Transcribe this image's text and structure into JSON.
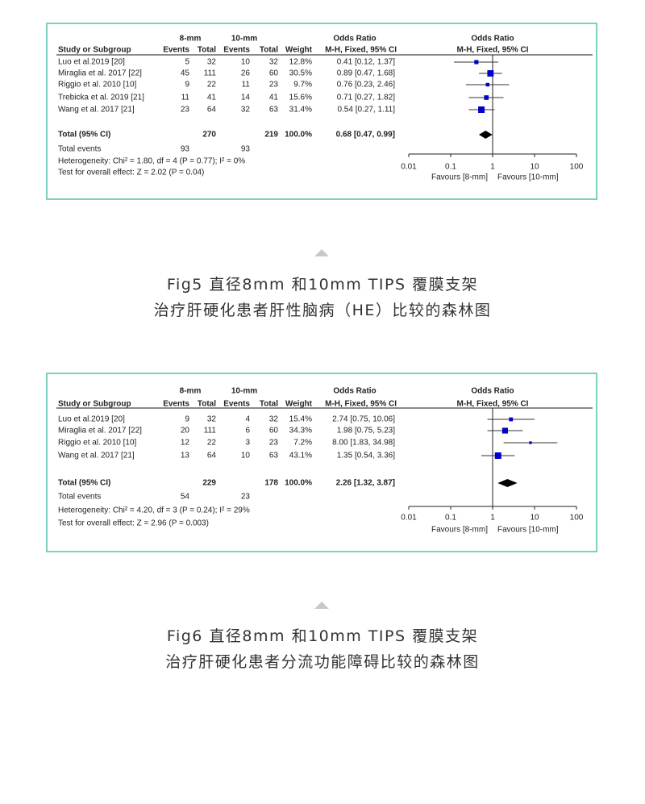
{
  "figures": [
    {
      "caption_line1": "Fig5 直径8mm 和10mm TIPS 覆膜支架",
      "caption_line2": "治疗肝硬化患者肝性脑病（HE）比较的森林图",
      "chart_data": {
        "type": "forest",
        "headers": {
          "group1": "8-mm",
          "group2": "10-mm",
          "or_col": "Odds Ratio",
          "study": "Study or Subgroup",
          "events": "Events",
          "total": "Total",
          "weight": "Weight",
          "method": "M-H, Fixed, 95% CI",
          "plot_title": "Odds Ratio",
          "plot_method": "M-H, Fixed, 95% CI"
        },
        "studies": [
          {
            "name": "Luo et al.2019 [20]",
            "e1": "5",
            "t1": "32",
            "e2": "10",
            "t2": "32",
            "weight": "12.8%",
            "or_text": "0.41 [0.12, 1.37]",
            "or": 0.41,
            "lo": 0.12,
            "hi": 1.37,
            "w": 12.8
          },
          {
            "name": "Miraglia et al. 2017 [22]",
            "e1": "45",
            "t1": "111",
            "e2": "26",
            "t2": "60",
            "weight": "30.5%",
            "or_text": "0.89 [0.47, 1.68]",
            "or": 0.89,
            "lo": 0.47,
            "hi": 1.68,
            "w": 30.5
          },
          {
            "name": "Riggio et al. 2010 [10]",
            "e1": "9",
            "t1": "22",
            "e2": "11",
            "t2": "23",
            "weight": "9.7%",
            "or_text": "0.76 [0.23, 2.46]",
            "or": 0.76,
            "lo": 0.23,
            "hi": 2.46,
            "w": 9.7
          },
          {
            "name": "Trebicka et al. 2019 [21]",
            "e1": "11",
            "t1": "41",
            "e2": "14",
            "t2": "41",
            "weight": "15.6%",
            "or_text": "0.71 [0.27, 1.82]",
            "or": 0.71,
            "lo": 0.27,
            "hi": 1.82,
            "w": 15.6
          },
          {
            "name": "Wang et al. 2017 [21]",
            "e1": "23",
            "t1": "64",
            "e2": "32",
            "t2": "63",
            "weight": "31.4%",
            "or_text": "0.54 [0.27, 1.11]",
            "or": 0.54,
            "lo": 0.27,
            "hi": 1.11,
            "w": 31.4
          }
        ],
        "total": {
          "name": "Total (95% CI)",
          "t1": "270",
          "t2": "219",
          "weight": "100.0%",
          "or_text": "0.68 [0.47, 0.99]",
          "or": 0.68,
          "lo": 0.47,
          "hi": 0.99
        },
        "total_events": {
          "label": "Total events",
          "e1": "93",
          "e2": "93"
        },
        "heterogeneity": "Heterogeneity: Chi² = 1.80, df = 4 (P = 0.77); I² = 0%",
        "overall": "Test for overall effect: Z = 2.02 (P = 0.04)",
        "axis_ticks": [
          "0.01",
          "0.1",
          "1",
          "10",
          "100"
        ],
        "favours_left": "Favours [8-mm]",
        "favours_right": "Favours [10-mm]",
        "scale": "log",
        "xlim": [
          0.01,
          100
        ],
        "marker_color": "#0000cc"
      }
    },
    {
      "caption_line1": "Fig6 直径8mm 和10mm TIPS 覆膜支架",
      "caption_line2": "治疗肝硬化患者分流功能障碍比较的森林图",
      "chart_data": {
        "type": "forest",
        "headers": {
          "group1": "8-mm",
          "group2": "10-mm",
          "or_col": "Odds Ratio",
          "study": "Study or Subgroup",
          "events": "Events",
          "total": "Total",
          "weight": "Weight",
          "method": "M-H, Fixed, 95% CI",
          "plot_title": "Odds Ratio",
          "plot_method": "M-H, Fixed, 95% CI"
        },
        "studies": [
          {
            "name": "Luo et al.2019 [20]",
            "e1": "9",
            "t1": "32",
            "e2": "4",
            "t2": "32",
            "weight": "15.4%",
            "or_text": "2.74 [0.75, 10.06]",
            "or": 2.74,
            "lo": 0.75,
            "hi": 10.06,
            "w": 15.4
          },
          {
            "name": "Miraglia et al. 2017 [22]",
            "e1": "20",
            "t1": "111",
            "e2": "6",
            "t2": "60",
            "weight": "34.3%",
            "or_text": "1.98 [0.75, 5.23]",
            "or": 1.98,
            "lo": 0.75,
            "hi": 5.23,
            "w": 34.3
          },
          {
            "name": "Riggio et al. 2010 [10]",
            "e1": "12",
            "t1": "22",
            "e2": "3",
            "t2": "23",
            "weight": "7.2%",
            "or_text": "8.00 [1.83, 34.98]",
            "or": 8.0,
            "lo": 1.83,
            "hi": 34.98,
            "w": 7.2
          },
          {
            "name": "Wang et al. 2017 [21]",
            "e1": "13",
            "t1": "64",
            "e2": "10",
            "t2": "63",
            "weight": "43.1%",
            "or_text": "1.35 [0.54, 3.36]",
            "or": 1.35,
            "lo": 0.54,
            "hi": 3.36,
            "w": 43.1
          }
        ],
        "total": {
          "name": "Total (95% CI)",
          "t1": "229",
          "t2": "178",
          "weight": "100.0%",
          "or_text": "2.26 [1.32, 3.87]",
          "or": 2.26,
          "lo": 1.32,
          "hi": 3.87
        },
        "total_events": {
          "label": "Total events",
          "e1": "54",
          "e2": "23"
        },
        "heterogeneity": "Heterogeneity: Chi² = 4.20, df = 3 (P = 0.24); I² = 29%",
        "overall": "Test for overall effect: Z = 2.96 (P = 0.003)",
        "axis_ticks": [
          "0.01",
          "0.1",
          "1",
          "10",
          "100"
        ],
        "favours_left": "Favours [8-mm]",
        "favours_right": "Favours [10-mm]",
        "scale": "log",
        "xlim": [
          0.01,
          100
        ],
        "marker_color": "#0000cc"
      }
    }
  ]
}
